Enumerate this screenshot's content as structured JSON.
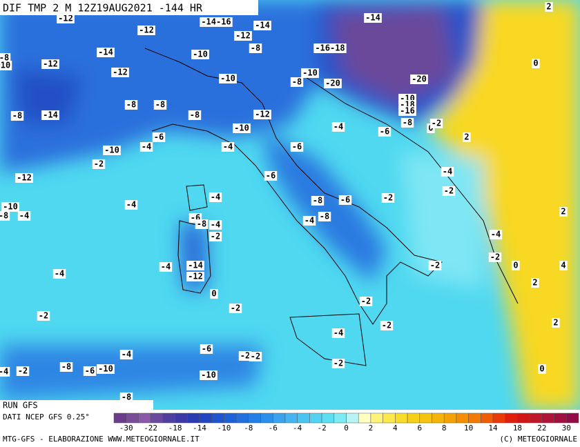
{
  "header": {
    "title": "DIF TMP 2 M 12Z19AUG2021 -144 HR"
  },
  "contour_labels": [
    "-12",
    "-12",
    "-14-16",
    "-12",
    "-14",
    "-14",
    "2",
    "-8",
    "-16-18",
    "-14",
    "-10",
    "-12",
    "-8",
    "10",
    "0",
    "-12",
    "-10",
    "-10",
    "-8",
    "-20",
    "-20",
    "-8",
    "-14",
    "-8",
    "-8",
    "-8",
    "-12",
    "-10",
    "-18",
    "-16",
    "-8",
    "0",
    "-2",
    "-10",
    "-4",
    "-6",
    "2",
    "-6",
    "-4",
    "-10",
    "-4",
    "-6",
    "-2",
    "-12",
    "-4",
    "-6",
    "-2",
    "-4",
    "-4",
    "-8",
    "-6",
    "-2",
    "2",
    "-10",
    "-8",
    "-4",
    "-6",
    "-8",
    "-4",
    "-4",
    "-8",
    "-2",
    "-4",
    "-2",
    "-2",
    "0",
    "4",
    "-4",
    "-14",
    "-12",
    "2",
    "-4",
    "0",
    "-2",
    "-2",
    "-2",
    "2",
    "-2",
    "-4",
    "-6",
    "-4",
    "-2",
    "-2",
    "-8",
    "-10",
    "-6",
    "-4",
    "-2",
    "-10",
    "-2",
    "0",
    "-8"
  ],
  "info": {
    "run": "RUN GFS",
    "source": "DATI NCEP GFS 0.25°"
  },
  "colorbar": {
    "ticks": [
      "-30",
      "-22",
      "-18",
      "-14",
      "-10",
      "-8",
      "-6",
      "-4",
      "-2",
      "0",
      "2",
      "4",
      "6",
      "8",
      "10",
      "14",
      "18",
      "22",
      "30"
    ],
    "colors": [
      "#6a3d8a",
      "#7b4c9a",
      "#8a5aa8",
      "#6a4a9f",
      "#4f3fa0",
      "#3d3aa8",
      "#2a3bb4",
      "#2146c2",
      "#1f55cf",
      "#1f62d8",
      "#2070e0",
      "#2380e6",
      "#2a90ea",
      "#3aa2ee",
      "#46b4f0",
      "#4cc4f2",
      "#54d2f2",
      "#5cdff2",
      "#7eeaf4",
      "#b8f4f6",
      "#ffffc0",
      "#fff27a",
      "#fce84a",
      "#f8dc2a",
      "#f6d018",
      "#f5c410",
      "#f4b408",
      "#f4a204",
      "#f48e02",
      "#f27a02",
      "#ef5c04",
      "#ea3a08",
      "#e0200c",
      "#d01818",
      "#c0182a",
      "#b01438",
      "#a21040",
      "#920c48"
    ]
  },
  "footer": {
    "left": "MTG-GFS - ELABORAZIONE WWW.METEOGIORNALE.IT",
    "right": "(C) METEOGIORNALE"
  }
}
